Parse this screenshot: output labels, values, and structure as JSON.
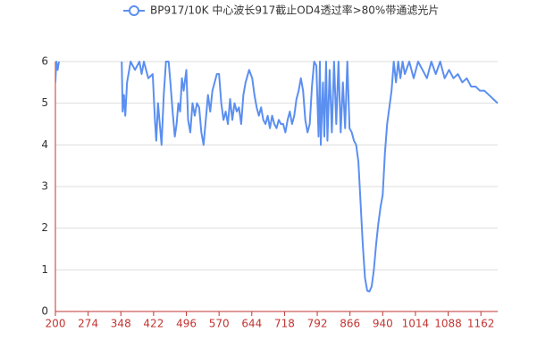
{
  "chart_data": {
    "type": "line",
    "legend": "BP917/10K 中心波长917截止OD4透过率>80%带通滤光片",
    "color": "#5b8ff0",
    "x": [
      200,
      202,
      205,
      208,
      210,
      350,
      352,
      355,
      358,
      362,
      370,
      380,
      390,
      395,
      400,
      410,
      420,
      425,
      428,
      432,
      436,
      440,
      445,
      450,
      456,
      460,
      465,
      470,
      474,
      478,
      482,
      486,
      490,
      496,
      500,
      505,
      510,
      515,
      520,
      525,
      530,
      535,
      540,
      545,
      550,
      555,
      560,
      565,
      570,
      575,
      580,
      585,
      590,
      595,
      600,
      605,
      610,
      615,
      620,
      625,
      630,
      638,
      645,
      650,
      655,
      660,
      665,
      670,
      675,
      680,
      685,
      690,
      695,
      700,
      705,
      710,
      715,
      720,
      725,
      730,
      735,
      740,
      745,
      750,
      755,
      760,
      765,
      770,
      775,
      780,
      785,
      790,
      795,
      798,
      800,
      805,
      808,
      812,
      815,
      820,
      825,
      830,
      835,
      840,
      845,
      850,
      855,
      860,
      865,
      870,
      875,
      880,
      885,
      890,
      895,
      900,
      905,
      910,
      915,
      920,
      925,
      930,
      935,
      940,
      945,
      950,
      955,
      960,
      965,
      970,
      975,
      980,
      985,
      990,
      1000,
      1010,
      1020,
      1030,
      1040,
      1050,
      1060,
      1070,
      1080,
      1090,
      1100,
      1110,
      1120,
      1130,
      1140,
      1150,
      1160,
      1170,
      1180,
      1190,
      1200
    ],
    "values": [
      5.5,
      6,
      5.8,
      6,
      null,
      6,
      4.8,
      5.2,
      4.7,
      5.5,
      6,
      5.8,
      6,
      5.7,
      6,
      5.6,
      5.7,
      4.6,
      4.1,
      5,
      4.5,
      4,
      5.2,
      6,
      6,
      5.5,
      4.8,
      4.2,
      4.5,
      5,
      4.8,
      5.6,
      5.3,
      5.8,
      4.6,
      4.3,
      5,
      4.7,
      5,
      4.9,
      4.3,
      4,
      4.6,
      5.2,
      4.8,
      5.3,
      5.5,
      5.7,
      5.7,
      5,
      4.6,
      4.8,
      4.5,
      5.1,
      4.6,
      5,
      4.8,
      4.9,
      4.5,
      5.2,
      5.5,
      5.8,
      5.6,
      5.2,
      4.9,
      4.7,
      4.9,
      4.6,
      4.5,
      4.7,
      4.4,
      4.7,
      4.5,
      4.4,
      4.6,
      4.5,
      4.5,
      4.3,
      4.6,
      4.8,
      4.5,
      4.7,
      5.1,
      5.3,
      5.6,
      5.3,
      4.6,
      4.3,
      4.5,
      5.4,
      6,
      5.9,
      4.2,
      6,
      4,
      5.5,
      4.2,
      6,
      4.1,
      5.8,
      4.3,
      6,
      4.5,
      6,
      4.3,
      5.5,
      4.4,
      6,
      4.4,
      4.3,
      4.1,
      4,
      3.6,
      2.6,
      1.6,
      0.8,
      0.5,
      0.48,
      0.6,
      1,
      1.6,
      2.1,
      2.5,
      2.8,
      3.8,
      4.5,
      4.9,
      5.3,
      6,
      5.5,
      6,
      5.6,
      6,
      5.7,
      6,
      5.6,
      6,
      5.8,
      5.6,
      6,
      5.7,
      6,
      5.6,
      5.8,
      5.6,
      5.7,
      5.5,
      5.6,
      5.4,
      5.4,
      5.3,
      5.3,
      5.2,
      5.1,
      5
    ],
    "xlim": [
      200,
      1200
    ],
    "xticks": [
      200,
      274,
      348,
      422,
      496,
      570,
      644,
      718,
      792,
      866,
      940,
      1014,
      1088,
      1162
    ],
    "ylim": [
      0,
      6
    ],
    "yticks": [
      0,
      1,
      2,
      3,
      4,
      5,
      6
    ],
    "grid": true
  }
}
